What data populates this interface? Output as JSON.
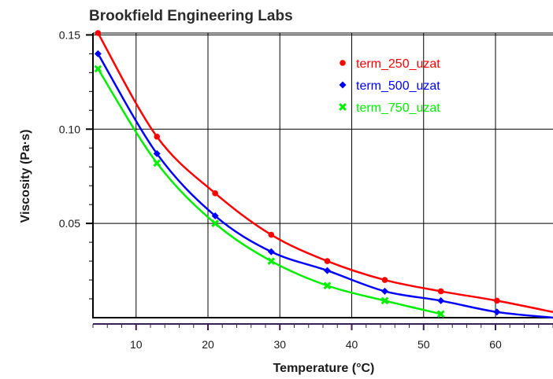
{
  "chart_data": {
    "type": "line",
    "title": "Brookfield Engineering Labs",
    "xlabel": "Temperature (°C)",
    "ylabel": "Viscosity (Pa·s)",
    "xlim": [
      4,
      68
    ],
    "ylim": [
      0,
      0.151
    ],
    "x_ticks": [
      10,
      20,
      30,
      40,
      50,
      60
    ],
    "y_ticks": [
      0.05,
      0.1,
      0.15
    ],
    "x_tick_labels": [
      "10",
      "20",
      "30",
      "40",
      "50",
      "60"
    ],
    "y_tick_labels": [
      "0.05",
      "0.10",
      "0.15"
    ],
    "grid": true,
    "legend_position": "top-right",
    "series": [
      {
        "name": "term_250_uzat",
        "color": "#ff0000",
        "marker": "circle",
        "x": [
          4.7,
          12.9,
          21.0,
          28.8,
          36.6,
          44.6,
          52.4,
          60.2,
          68.0
        ],
        "y": [
          0.151,
          0.096,
          0.066,
          0.044,
          0.03,
          0.02,
          0.014,
          0.009,
          0.003
        ]
      },
      {
        "name": "term_500_uzat",
        "color": "#0000ff",
        "marker": "diamond",
        "x": [
          4.7,
          12.9,
          21.0,
          28.8,
          36.6,
          44.6,
          52.4,
          60.2,
          68.0
        ],
        "y": [
          0.14,
          0.087,
          0.054,
          0.035,
          0.025,
          0.014,
          0.009,
          0.003,
          0.0
        ]
      },
      {
        "name": "term_750_uzat",
        "color": "#00ee00",
        "marker": "x",
        "x": [
          4.7,
          12.9,
          21.0,
          28.8,
          36.6,
          44.6,
          52.4
        ],
        "y": [
          0.132,
          0.082,
          0.05,
          0.03,
          0.017,
          0.009,
          0.002
        ]
      }
    ]
  }
}
